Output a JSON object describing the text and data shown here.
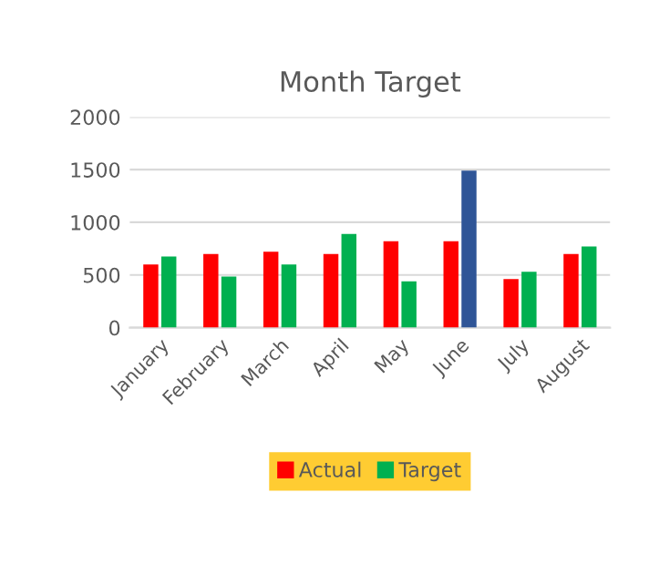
{
  "chart_data": {
    "type": "bar",
    "title": "Month Target",
    "categories": [
      "January",
      "February",
      "March",
      "April",
      "May",
      "June",
      "July",
      "August"
    ],
    "series": [
      {
        "name": "Actual",
        "color": "#ff0000",
        "values": [
          600,
          700,
          720,
          700,
          820,
          820,
          460,
          700
        ]
      },
      {
        "name": "Target",
        "color": "#00b050",
        "colors": [
          "#00b050",
          "#00b050",
          "#00b050",
          "#00b050",
          "#00b050",
          "#2f5597",
          "#00b050",
          "#00b050"
        ],
        "values": [
          675,
          485,
          600,
          890,
          440,
          1490,
          530,
          770
        ]
      }
    ],
    "ylim": [
      0,
      2000
    ],
    "yticks": [
      0,
      500,
      1000,
      1500,
      2000
    ],
    "grid": "y",
    "legend": "bottom"
  }
}
